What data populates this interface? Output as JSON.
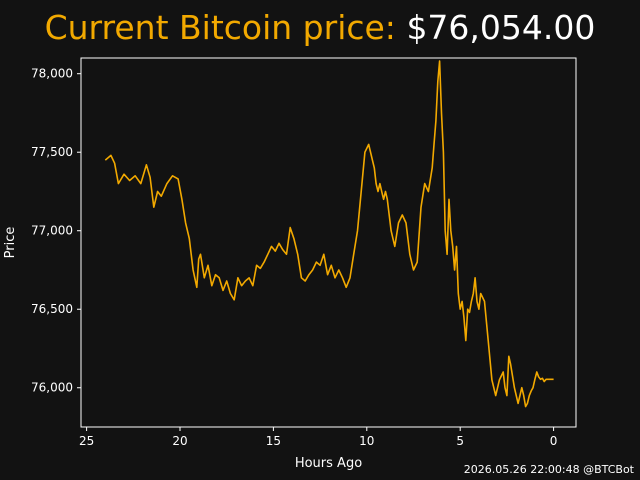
{
  "header": {
    "label": "Current Bitcoin price:",
    "price": "$76,054.00"
  },
  "footer": {
    "timestamp_credit": "2026.05.26 22:00:48 @BTCBot"
  },
  "colors": {
    "background": "#121212",
    "accent": "#f2a900",
    "text": "#ffffff"
  },
  "chart_data": {
    "type": "line",
    "title": "",
    "xlabel": "Hours Ago",
    "ylabel": "Price",
    "xlim": [
      25.3,
      -1.2
    ],
    "ylim": [
      75750,
      78100
    ],
    "x_reversed": true,
    "xticks": [
      25,
      20,
      15,
      10,
      5,
      0
    ],
    "yticks": [
      76000,
      76500,
      77000,
      77500,
      78000
    ],
    "ytick_labels": [
      "76,000",
      "76,500",
      "77,000",
      "77,500",
      "78,000"
    ],
    "grid": false,
    "series": [
      {
        "color": "#f2a900",
        "x": [
          24,
          23.7,
          23.5,
          23.3,
          23,
          22.7,
          22.4,
          22.1,
          21.8,
          21.6,
          21.4,
          21.2,
          21,
          20.7,
          20.4,
          20.1,
          19.9,
          19.7,
          19.5,
          19.3,
          19.1,
          19,
          18.9,
          18.7,
          18.5,
          18.3,
          18.1,
          17.9,
          17.7,
          17.5,
          17.3,
          17.1,
          16.9,
          16.7,
          16.5,
          16.3,
          16.1,
          15.9,
          15.7,
          15.5,
          15.3,
          15.1,
          14.9,
          14.7,
          14.5,
          14.3,
          14.1,
          13.9,
          13.7,
          13.5,
          13.3,
          13.1,
          12.9,
          12.7,
          12.5,
          12.3,
          12.1,
          11.9,
          11.7,
          11.5,
          11.3,
          11.1,
          10.9,
          10.7,
          10.5,
          10.3,
          10.1,
          9.9,
          9.7,
          9.6,
          9.5,
          9.4,
          9.3,
          9.2,
          9.1,
          9,
          8.9,
          8.7,
          8.5,
          8.3,
          8.1,
          7.9,
          7.7,
          7.5,
          7.3,
          7.1,
          6.9,
          6.7,
          6.5,
          6.4,
          6.3,
          6.2,
          6.1,
          6,
          5.9,
          5.8,
          5.7,
          5.6,
          5.5,
          5.4,
          5.3,
          5.2,
          5.1,
          5,
          4.9,
          4.8,
          4.7,
          4.6,
          4.5,
          4.4,
          4.3,
          4.2,
          4.1,
          4,
          3.9,
          3.7,
          3.5,
          3.3,
          3.1,
          2.9,
          2.7,
          2.6,
          2.5,
          2.4,
          2.3,
          2.1,
          1.9,
          1.7,
          1.6,
          1.5,
          1.4,
          1.3,
          1.2,
          1.1,
          1,
          0.9,
          0.8,
          0.7,
          0.6,
          0.5,
          0.4,
          0.3,
          0.2,
          0.1,
          0
        ],
        "y": [
          77450,
          77480,
          77430,
          77300,
          77360,
          77320,
          77350,
          77300,
          77420,
          77340,
          77150,
          77250,
          77220,
          77300,
          77350,
          77330,
          77200,
          77050,
          76950,
          76750,
          76640,
          76820,
          76850,
          76700,
          76780,
          76650,
          76720,
          76700,
          76620,
          76680,
          76600,
          76560,
          76700,
          76650,
          76680,
          76700,
          76650,
          76780,
          76760,
          76800,
          76850,
          76900,
          76870,
          76920,
          76880,
          76850,
          77020,
          76950,
          76850,
          76700,
          76680,
          76720,
          76750,
          76800,
          76780,
          76850,
          76720,
          76780,
          76700,
          76750,
          76700,
          76640,
          76700,
          76850,
          77000,
          77250,
          77500,
          77550,
          77450,
          77400,
          77300,
          77250,
          77300,
          77250,
          77200,
          77250,
          77200,
          77000,
          76900,
          77050,
          77100,
          77050,
          76850,
          76750,
          76800,
          77150,
          77300,
          77250,
          77400,
          77550,
          77700,
          77950,
          78080,
          77750,
          77500,
          77000,
          76850,
          77200,
          77000,
          76900,
          76750,
          76900,
          76600,
          76500,
          76550,
          76450,
          76300,
          76500,
          76480,
          76550,
          76600,
          76700,
          76550,
          76500,
          76600,
          76550,
          76300,
          76050,
          75950,
          76050,
          76100,
          76000,
          75950,
          76200,
          76150,
          76000,
          75900,
          76000,
          75950,
          75880,
          75900,
          75950,
          75980,
          76000,
          76054,
          76100,
          76070,
          76054,
          76060,
          76040,
          76054,
          76054,
          76054,
          76054,
          76054
        ]
      }
    ]
  }
}
